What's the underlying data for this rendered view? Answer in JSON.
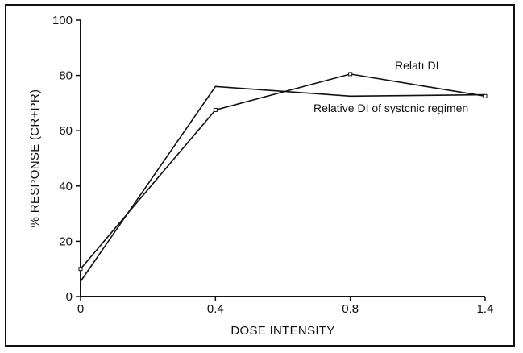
{
  "chart_data": {
    "type": "line",
    "title": "",
    "xlabel": "DOSE INTENSITY",
    "ylabel": "% RESPONSE (CR+PR)",
    "ylim": [
      0,
      100
    ],
    "x_categories": [
      "0",
      "0.4",
      "0.8",
      "1.4"
    ],
    "y_ticks": [
      0,
      20,
      40,
      60,
      80,
      100
    ],
    "y_tick_labels": [
      "0",
      "20",
      "40",
      "60",
      "80",
      "100"
    ],
    "grid": false,
    "series": [
      {
        "name": "Relatı DI",
        "label": "Relatı DI",
        "values": [
          10,
          67.5,
          80.5,
          72.5
        ],
        "markers": true
      },
      {
        "name": "Relative DI of systcnic regimen",
        "label": "Relative DI of systcnic regimen",
        "values": [
          5.5,
          76,
          72.5,
          73
        ],
        "markers": false
      }
    ]
  }
}
